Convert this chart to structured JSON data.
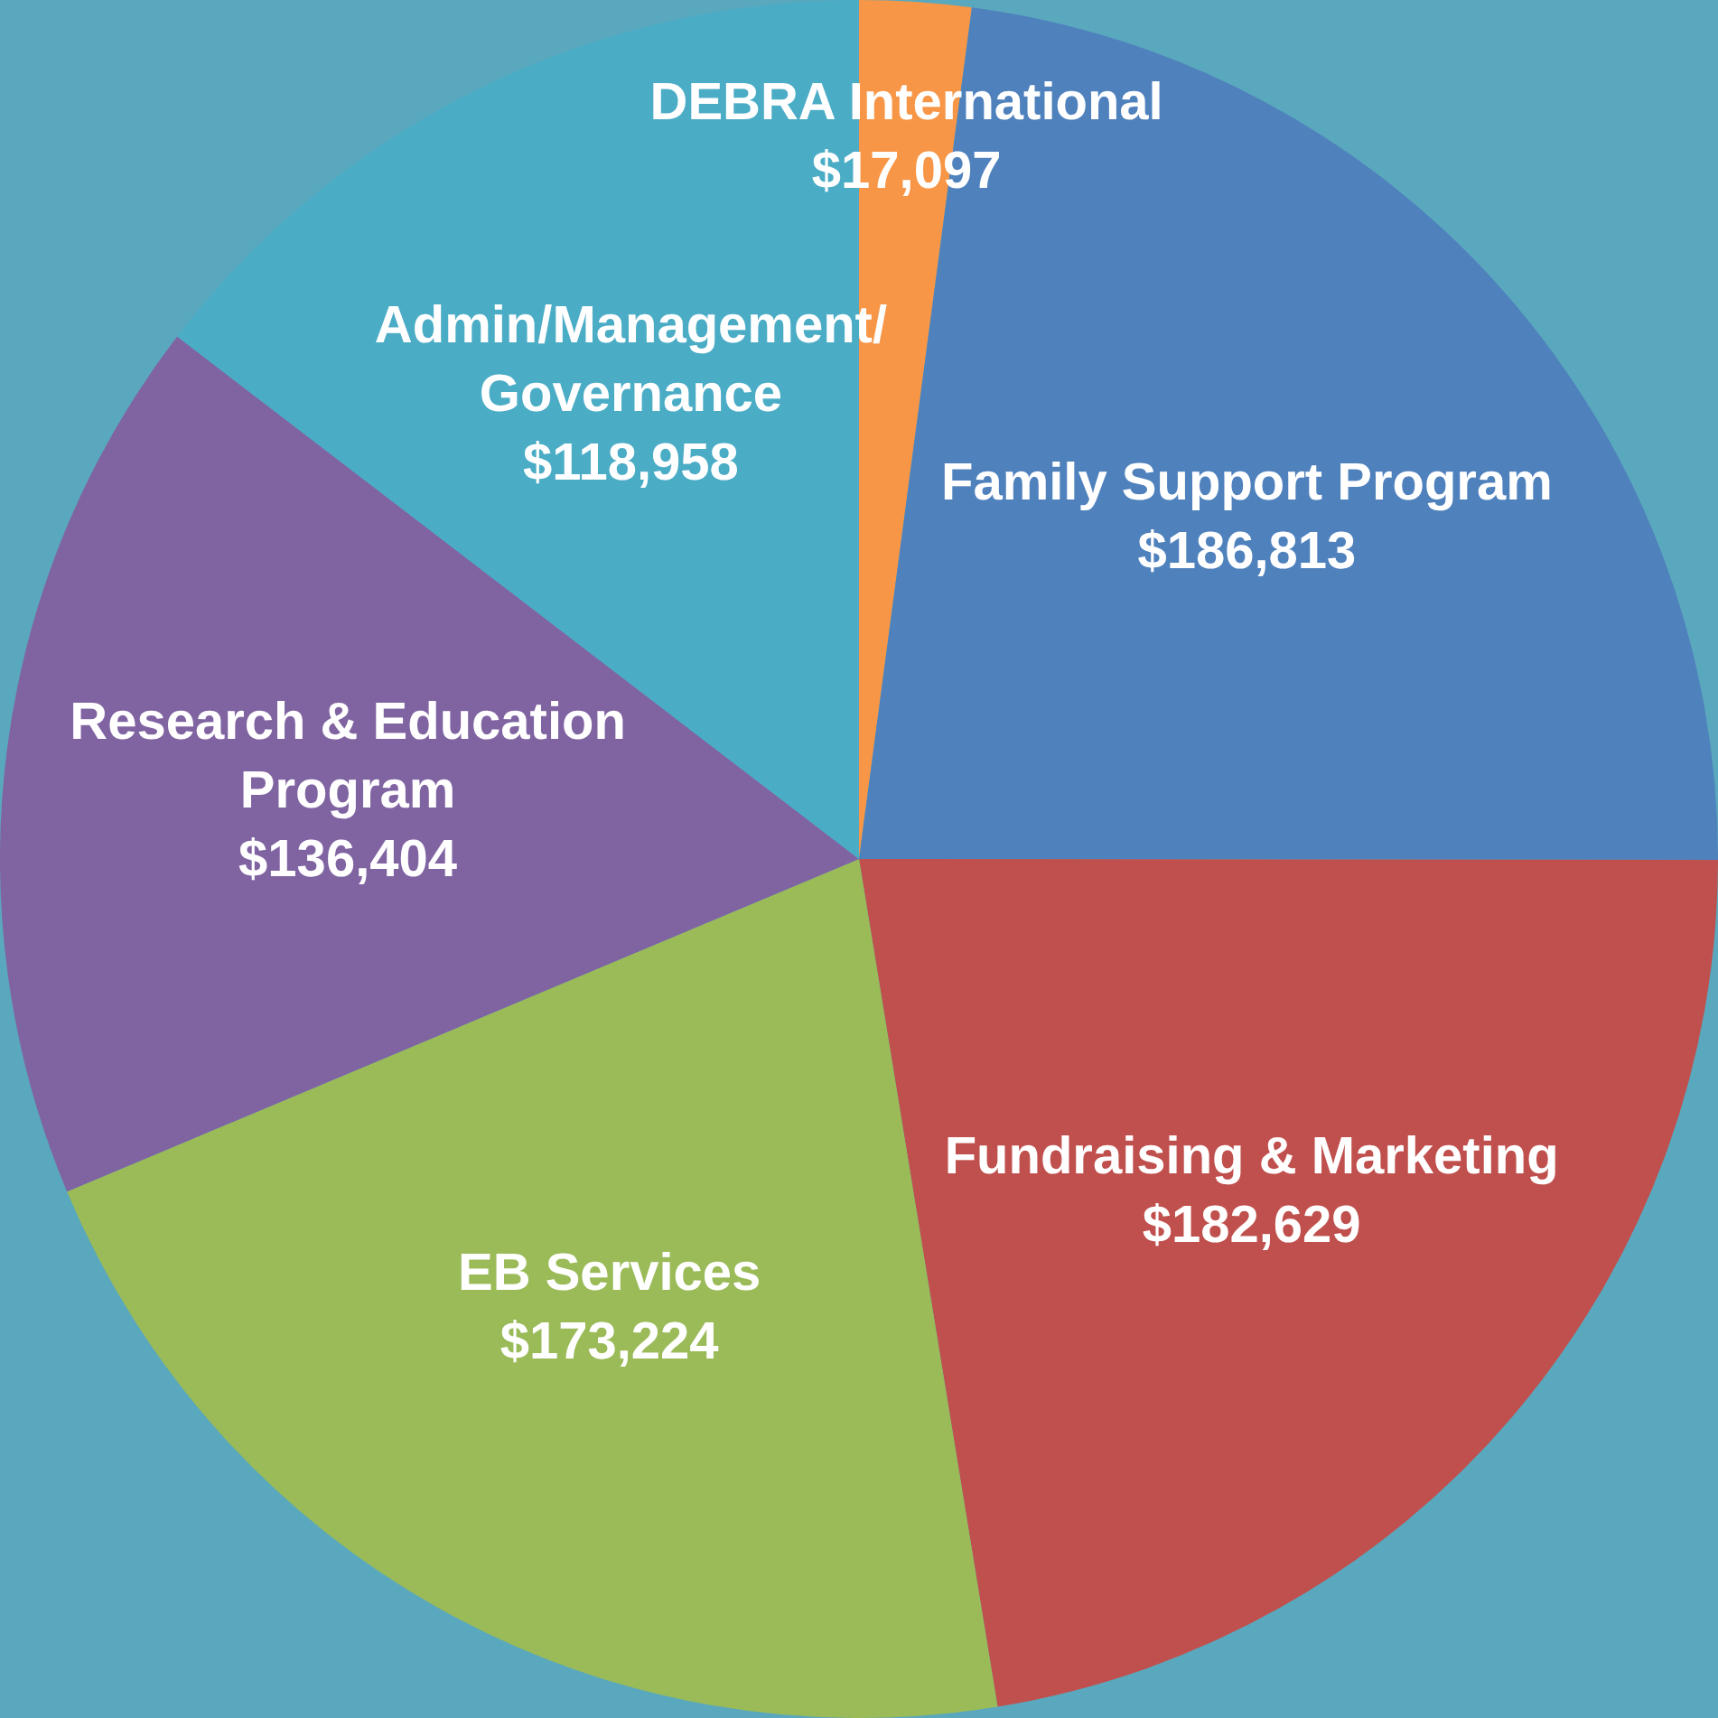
{
  "chart_data": {
    "type": "pie",
    "categories": [
      "DEBRA International",
      "Family Support Program",
      "Fundraising & Marketing",
      "EB Services",
      "Research & Education\nProgram",
      "Admin/Management/\nGovernance"
    ],
    "values": [
      17097,
      186813,
      182629,
      173224,
      136404,
      118958
    ],
    "value_labels": [
      "$17,097",
      "$186,813",
      "$182,629",
      "$173,224",
      "$136,404",
      "$118,958"
    ],
    "colors": [
      "#f79646",
      "#4f81bd",
      "#c0504d",
      "#9bbb59",
      "#8064a2",
      "#4bacc6"
    ],
    "legend": false
  }
}
